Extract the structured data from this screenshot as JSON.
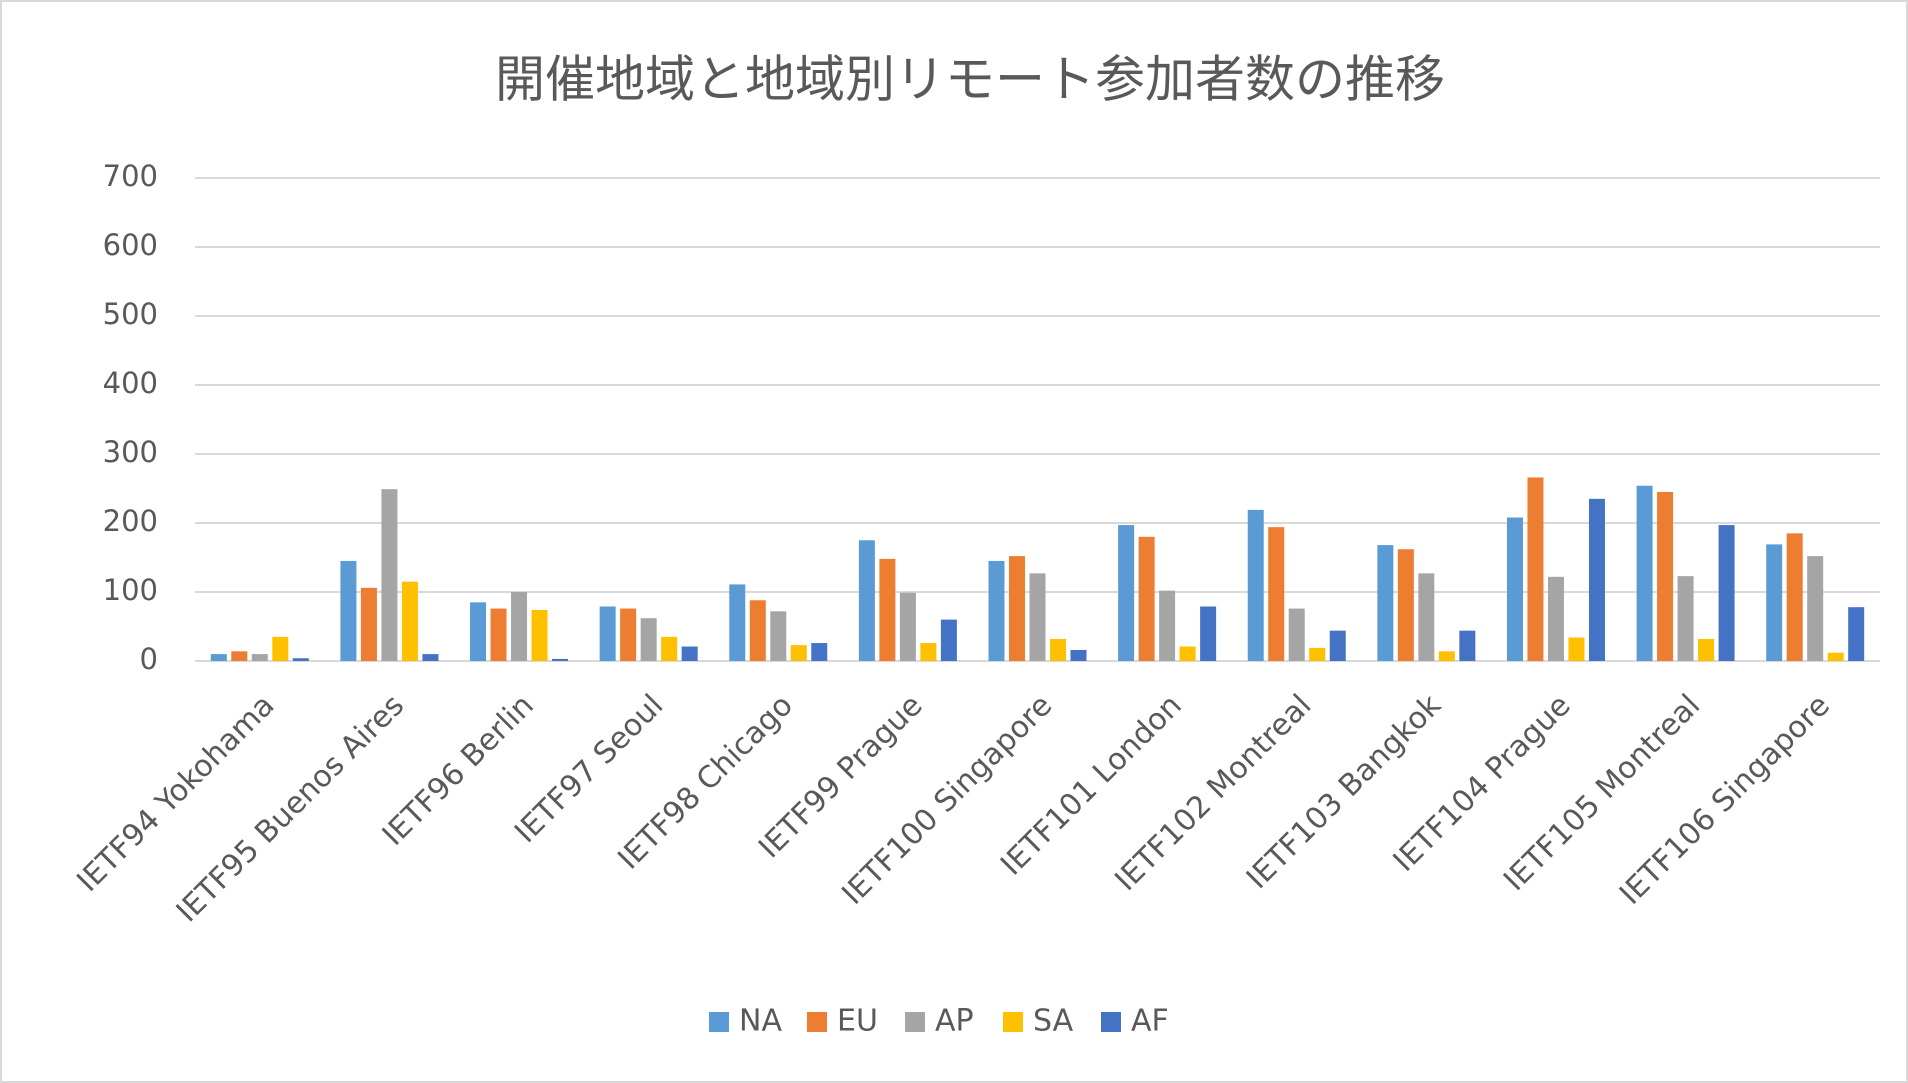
{
  "chart_data": {
    "type": "bar",
    "title": "開催地域と地域別リモート参加者数の推移",
    "categories": [
      "IETF94 Yokohama",
      "IETF95 Buenos Aires",
      "IETF96 Berlin",
      "IETF97 Seoul",
      "IETF98 Chicago",
      "IETF99 Prague",
      "IETF100 Singapore",
      "IETF101 London",
      "IETF102 Montreal",
      "IETF103 Bangkok",
      "IETF104 Prague",
      "IETF105 Montreal",
      "IETF106 Singapore"
    ],
    "series": [
      {
        "name": "NA",
        "color": "#5b9bd5",
        "values": [
          10,
          145,
          85,
          79,
          111,
          175,
          145,
          197,
          219,
          168,
          208,
          254,
          169
        ]
      },
      {
        "name": "EU",
        "color": "#ed7d31",
        "values": [
          14,
          106,
          76,
          76,
          88,
          148,
          152,
          180,
          194,
          162,
          266,
          245,
          185
        ]
      },
      {
        "name": "AP",
        "color": "#a5a5a5",
        "values": [
          10,
          249,
          100,
          62,
          72,
          99,
          127,
          102,
          76,
          127,
          122,
          123,
          152
        ]
      },
      {
        "name": "SA",
        "color": "#ffc000",
        "values": [
          35,
          115,
          74,
          35,
          23,
          26,
          32,
          21,
          19,
          14,
          34,
          32,
          12
        ]
      },
      {
        "name": "AF",
        "color": "#4472c4",
        "values": [
          4,
          10,
          3,
          21,
          26,
          60,
          16,
          79,
          44,
          44,
          235,
          197,
          78
        ]
      }
    ],
    "ylim": [
      0,
      700
    ],
    "yticks": [
      0,
      100,
      200,
      300,
      400,
      500,
      600,
      700
    ],
    "grid": true,
    "legend": "bottom"
  }
}
